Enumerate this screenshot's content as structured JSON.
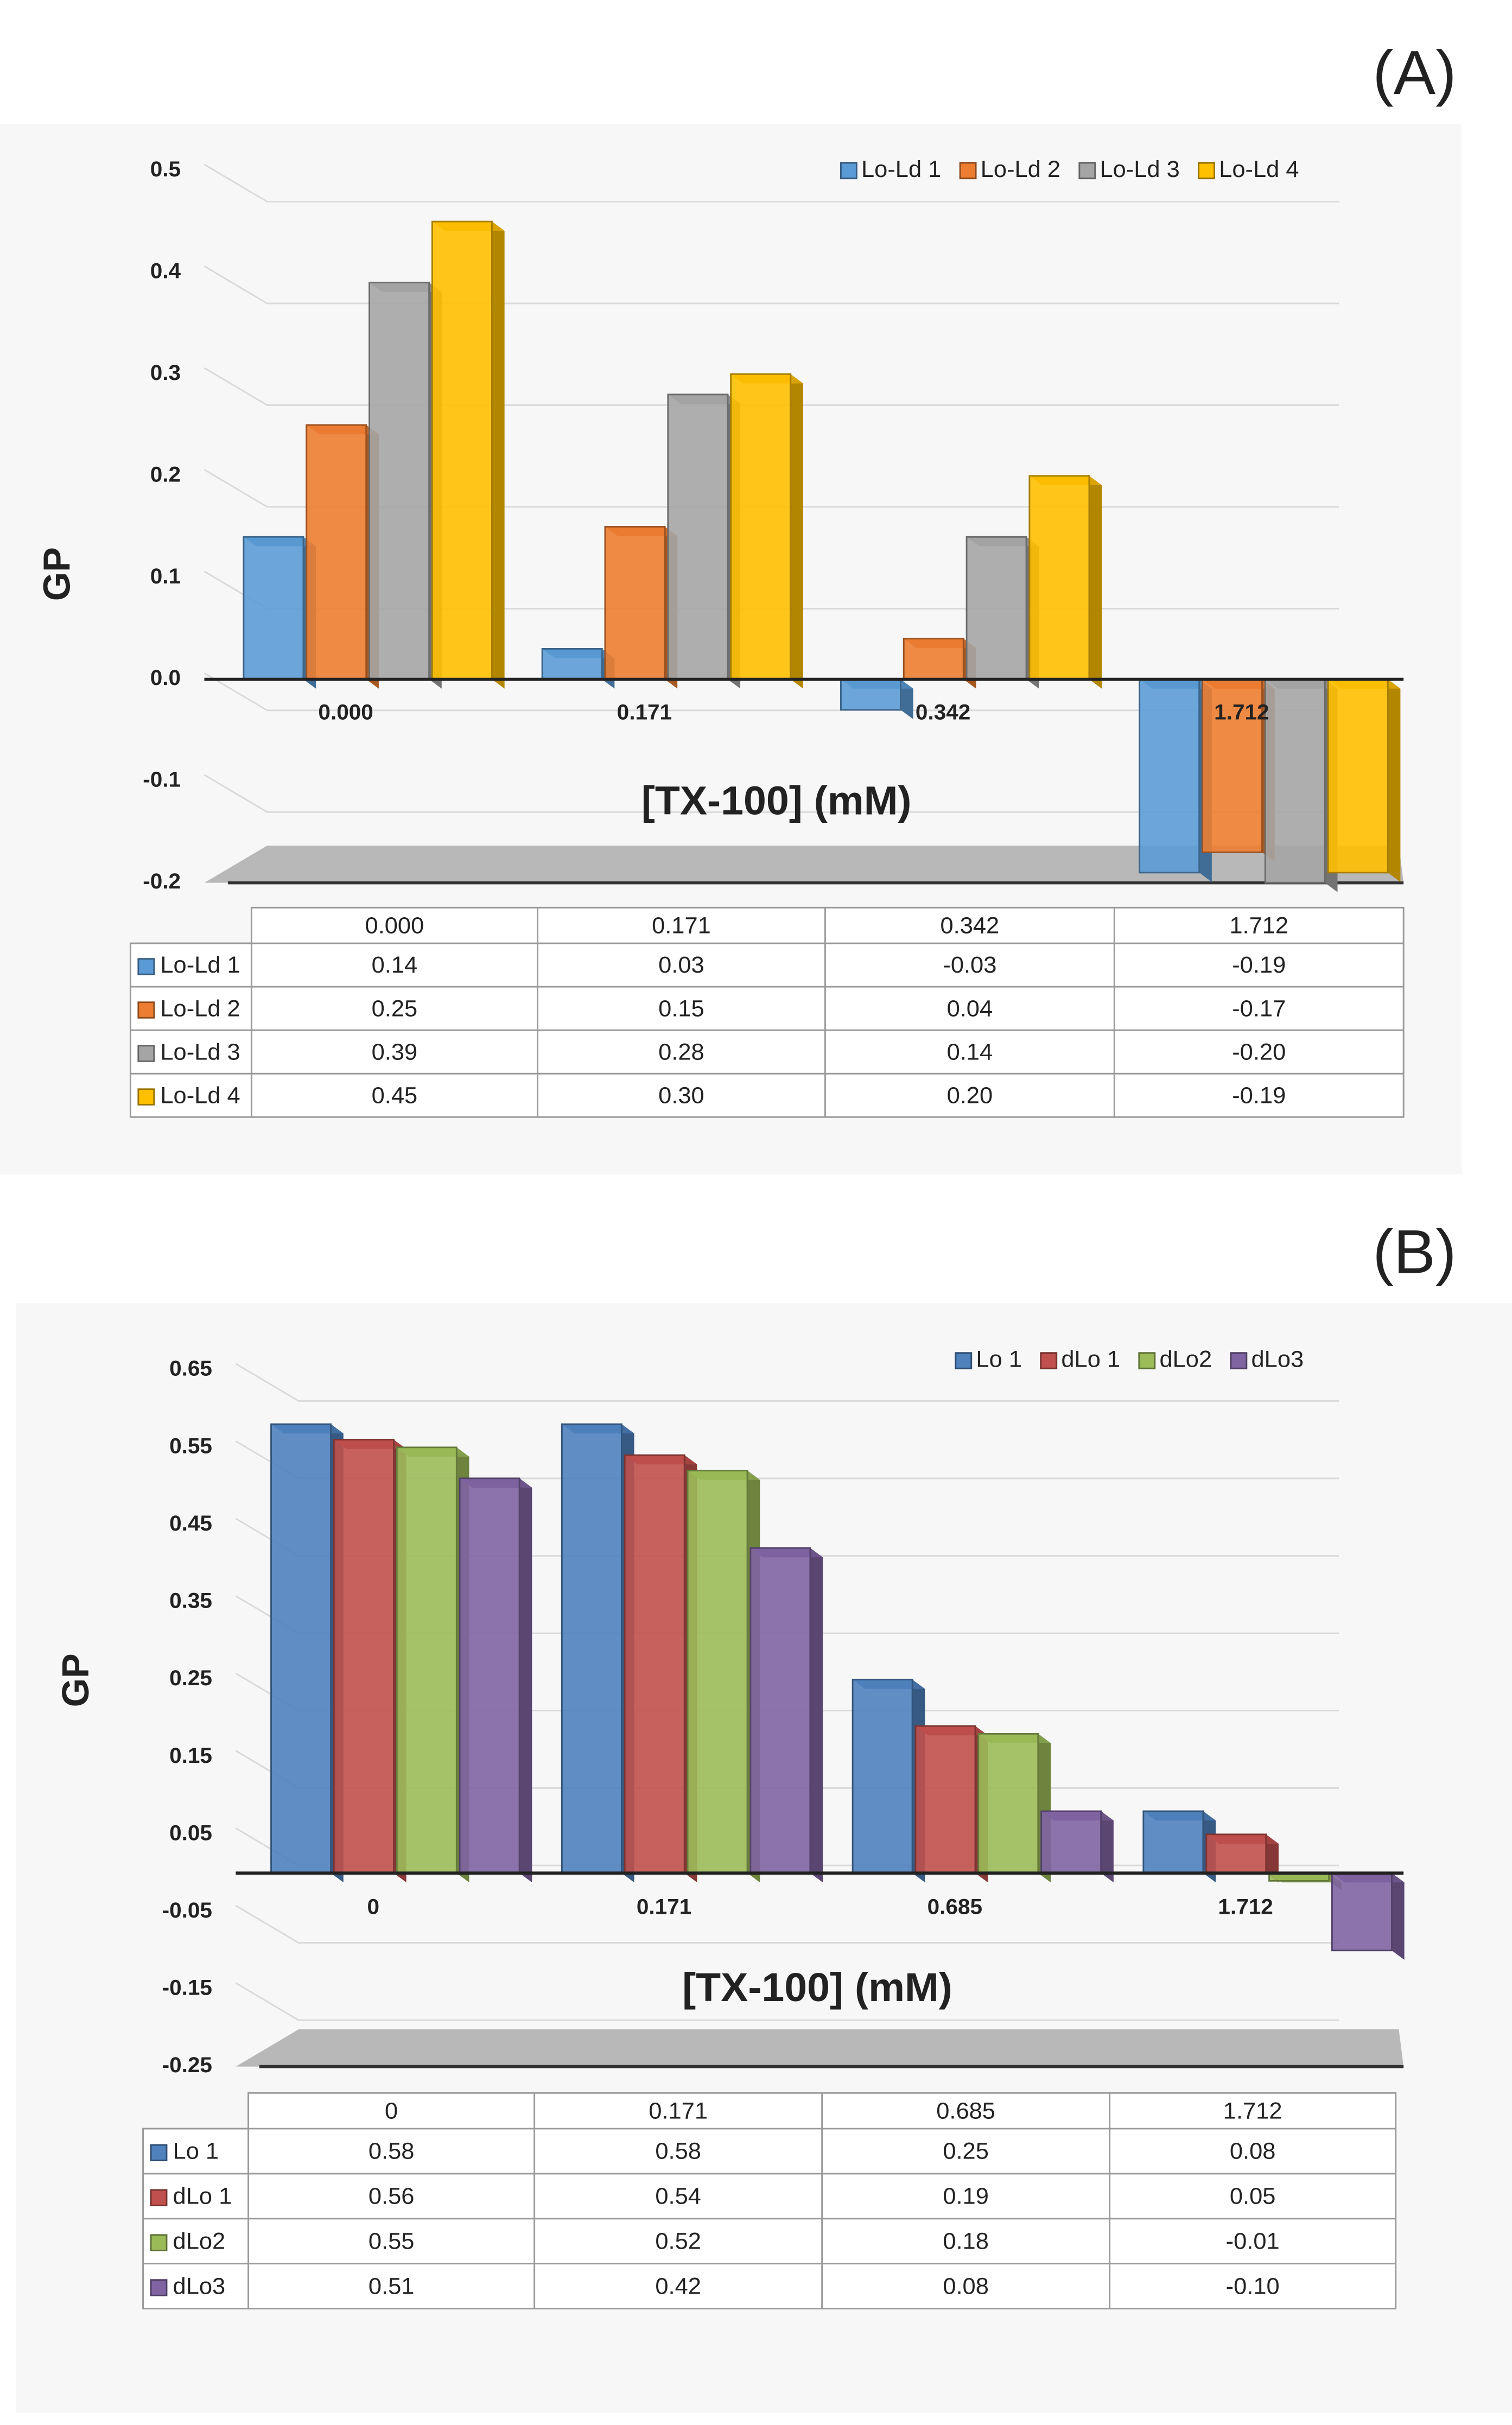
{
  "chart_data": [
    {
      "type": "bar",
      "panel_label": "(A)",
      "ylabel": "GP",
      "xlabel": "[TX-100] (mM)",
      "categories": [
        "0.000",
        "0.171",
        "0.342",
        "1.712"
      ],
      "series": [
        {
          "name": "Lo-Ld 1",
          "color": "#5b9bd5",
          "values": [
            0.14,
            0.03,
            -0.03,
            -0.19
          ],
          "value_labels": [
            "0.14",
            "0.03",
            "-0.03",
            "-0.19"
          ]
        },
        {
          "name": "Lo-Ld 2",
          "color": "#ed7d31",
          "values": [
            0.25,
            0.15,
            0.04,
            -0.17
          ],
          "value_labels": [
            "0.25",
            "0.15",
            "0.04",
            "-0.17"
          ]
        },
        {
          "name": "Lo-Ld 3",
          "color": "#a5a5a5",
          "values": [
            0.39,
            0.28,
            0.14,
            -0.2
          ],
          "value_labels": [
            "0.39",
            "0.28",
            "0.14",
            "-0.20"
          ]
        },
        {
          "name": "Lo-Ld 4",
          "color": "#ffc000",
          "values": [
            0.45,
            0.3,
            0.2,
            -0.19
          ],
          "value_labels": [
            "0.45",
            "0.30",
            "0.20",
            "-0.19"
          ]
        }
      ],
      "ylim": [
        -0.2,
        0.5
      ],
      "yticks": [
        -0.2,
        -0.1,
        {
          "value": 0,
          "label": "0.0"
        },
        0.1,
        0.2,
        0.3,
        0.4,
        0.5
      ],
      "grid": true,
      "legend": "top-right"
    },
    {
      "type": "bar",
      "panel_label": "(B)",
      "ylabel": "GP",
      "xlabel": "[TX-100] (mM)",
      "categories": [
        "0",
        "0.171",
        "0.685",
        "1.712"
      ],
      "series": [
        {
          "name": "Lo 1",
          "color": "#4f81bd",
          "values": [
            0.58,
            0.58,
            0.25,
            0.08
          ],
          "value_labels": [
            "0.58",
            "0.58",
            "0.25",
            "0.08"
          ]
        },
        {
          "name": "dLo 1",
          "color": "#c0504d",
          "values": [
            0.56,
            0.54,
            0.19,
            0.05
          ],
          "value_labels": [
            "0.56",
            "0.54",
            "0.19",
            "0.05"
          ]
        },
        {
          "name": "dLo2",
          "color": "#9bbb59",
          "values": [
            0.55,
            0.52,
            0.18,
            -0.01
          ],
          "value_labels": [
            "0.55",
            "0.52",
            "0.18",
            "-0.01"
          ]
        },
        {
          "name": "dLo3",
          "color": "#8064a2",
          "values": [
            0.51,
            0.42,
            0.08,
            -0.1
          ],
          "value_labels": [
            "0.51",
            "0.42",
            "0.08",
            "-0.10"
          ]
        }
      ],
      "ylim": [
        -0.25,
        0.65
      ],
      "yticks": [
        -0.25,
        -0.15,
        -0.05,
        0.05,
        0.15,
        0.25,
        0.35,
        0.45,
        0.55,
        0.65
      ],
      "grid": true,
      "legend": "top-right"
    }
  ]
}
